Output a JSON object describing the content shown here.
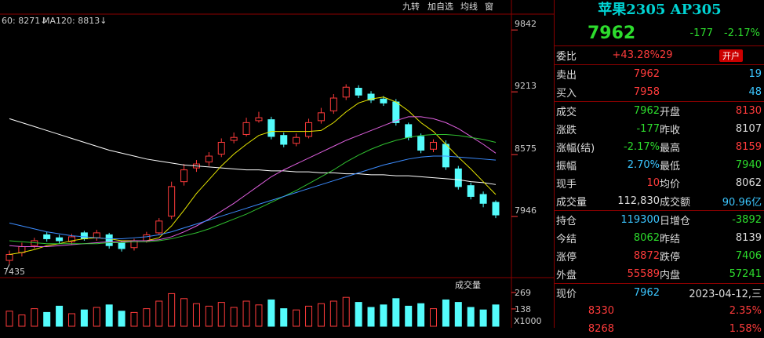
{
  "toolbar": [
    "九转",
    "加自选",
    "均线",
    "窗"
  ],
  "ma_legend": [
    "60: 8271↓",
    "MA120: 8813↓"
  ],
  "chart_data": {
    "type": "candlestick",
    "ylim": [
      7325,
      10003
    ],
    "yticks": [
      7946,
      8575,
      9213,
      9842
    ],
    "low_label": "7435",
    "open": [
      7500,
      7580,
      7650,
      7760,
      7730,
      7690,
      7780,
      7730,
      7760,
      7680,
      7630,
      7700,
      7780,
      7950,
      8300,
      8440,
      8500,
      8580,
      8720,
      8780,
      8920,
      8930,
      8770,
      8690,
      8760,
      8920,
      9020,
      9160,
      9250,
      9190,
      9140,
      9110,
      8880,
      8760,
      8630,
      8680,
      8430,
      8260,
      8170,
      8090
    ],
    "high": [
      7600,
      7680,
      7730,
      7790,
      7760,
      7770,
      7800,
      7810,
      7780,
      7700,
      7720,
      7790,
      7930,
      8300,
      8480,
      8520,
      8600,
      8740,
      8800,
      8950,
      9010,
      8960,
      8800,
      8790,
      8940,
      9050,
      9190,
      9290,
      9280,
      9220,
      9170,
      9140,
      8900,
      8790,
      8730,
      8720,
      8460,
      8290,
      8200,
      8110
    ],
    "low": [
      7460,
      7540,
      7620,
      7690,
      7670,
      7660,
      7700,
      7700,
      7620,
      7590,
      7600,
      7680,
      7760,
      7920,
      8260,
      8400,
      8460,
      8550,
      8690,
      8760,
      8900,
      8730,
      8650,
      8660,
      8740,
      8890,
      8990,
      9130,
      9150,
      9100,
      9070,
      8870,
      8720,
      8590,
      8600,
      8420,
      8220,
      8120,
      8040,
      7930
    ],
    "close": [
      7560,
      7640,
      7700,
      7720,
      7700,
      7740,
      7720,
      7780,
      7650,
      7620,
      7700,
      7760,
      7900,
      8250,
      8420,
      8480,
      8560,
      8700,
      8750,
      8900,
      8950,
      8760,
      8680,
      8750,
      8900,
      9000,
      9150,
      9260,
      9180,
      9130,
      9100,
      8900,
      8750,
      8620,
      8700,
      8450,
      8250,
      8150,
      8080,
      7962
    ],
    "up_color": "#ff3b3b",
    "down_color": "#54fcfc",
    "series": [
      {
        "color": "#ffffff",
        "values": [
          8940,
          8900,
          8860,
          8820,
          8780,
          8740,
          8700,
          8660,
          8620,
          8590,
          8560,
          8530,
          8510,
          8490,
          8470,
          8460,
          8450,
          8440,
          8430,
          8420,
          8420,
          8410,
          8410,
          8400,
          8400,
          8390,
          8390,
          8380,
          8380,
          8370,
          8370,
          8360,
          8360,
          8350,
          8340,
          8330,
          8320,
          8300,
          8290,
          8271
        ]
      },
      {
        "color": "#e6e600",
        "values": [
          7560,
          7580,
          7610,
          7650,
          7670,
          7700,
          7720,
          7730,
          7720,
          7700,
          7700,
          7700,
          7730,
          7850,
          8010,
          8180,
          8320,
          8460,
          8580,
          8680,
          8770,
          8810,
          8810,
          8810,
          8810,
          8820,
          8900,
          9010,
          9100,
          9140,
          9160,
          9110,
          9020,
          8900,
          8810,
          8680,
          8550,
          8430,
          8300,
          8170
        ]
      },
      {
        "color": "#e060e0",
        "values": [
          7650,
          7640,
          7640,
          7640,
          7650,
          7660,
          7670,
          7680,
          7690,
          7690,
          7700,
          7700,
          7710,
          7740,
          7790,
          7850,
          7920,
          8000,
          8080,
          8170,
          8260,
          8350,
          8420,
          8480,
          8540,
          8600,
          8660,
          8720,
          8770,
          8820,
          8870,
          8920,
          8960,
          8960,
          8940,
          8900,
          8840,
          8760,
          8680,
          8590
        ]
      },
      {
        "color": "#30c030",
        "values": [
          7700,
          7690,
          7680,
          7670,
          7670,
          7670,
          7670,
          7670,
          7680,
          7680,
          7690,
          7690,
          7700,
          7720,
          7750,
          7780,
          7820,
          7870,
          7920,
          7970,
          8030,
          8090,
          8150,
          8210,
          8280,
          8350,
          8420,
          8500,
          8570,
          8630,
          8680,
          8720,
          8750,
          8770,
          8780,
          8780,
          8770,
          8750,
          8730,
          8700
        ]
      },
      {
        "color": "#3c8cff",
        "values": [
          7880,
          7850,
          7820,
          7790,
          7770,
          7750,
          7740,
          7730,
          7720,
          7720,
          7730,
          7740,
          7760,
          7790,
          7830,
          7870,
          7910,
          7950,
          7990,
          8030,
          8070,
          8110,
          8150,
          8190,
          8230,
          8270,
          8310,
          8350,
          8390,
          8430,
          8470,
          8500,
          8530,
          8550,
          8560,
          8560,
          8550,
          8540,
          8530,
          8520
        ]
      }
    ]
  },
  "volume": {
    "label": "成交量",
    "ylim": [
      0,
      300
    ],
    "yticks": [
      138,
      269
    ],
    "unit": "X1000",
    "values": [
      120,
      90,
      140,
      110,
      160,
      100,
      130,
      150,
      170,
      120,
      110,
      140,
      200,
      260,
      220,
      180,
      160,
      190,
      150,
      200,
      170,
      210,
      140,
      130,
      160,
      180,
      200,
      230,
      190,
      150,
      170,
      220,
      160,
      180,
      140,
      210,
      190,
      150,
      130,
      170
    ]
  },
  "quote": {
    "title": "苹果2305 AP305",
    "price": "7962",
    "change": "-177",
    "pct": "-2.17%",
    "rows": [
      [
        "委比",
        "+43.28%",
        "29",
        "开户"
      ],
      [
        "卖出",
        "7962",
        "19"
      ],
      [
        "买入",
        "7958",
        "48"
      ],
      [
        "成交",
        "7962",
        "开盘",
        "8130"
      ],
      [
        "涨跌",
        "-177",
        "昨收",
        "8107"
      ],
      [
        "涨幅(结)",
        "-2.17%",
        "最高",
        "8159"
      ],
      [
        "振幅",
        "2.70%",
        "最低",
        "7940"
      ],
      [
        "现手",
        "10",
        "均价",
        "8062"
      ],
      [
        "成交量",
        "112,830",
        "成交额",
        "90.96亿"
      ],
      [
        "持仓",
        "119300",
        "日增仓",
        "-3892"
      ],
      [
        "今结",
        "8062",
        "昨结",
        "8139"
      ],
      [
        "涨停",
        "8872",
        "跌停",
        "7406"
      ],
      [
        "外盘",
        "55589",
        "内盘",
        "57241"
      ],
      [
        "现价",
        "7962",
        "2023-04-12,三"
      ],
      [
        "8330",
        "2.35%"
      ],
      [
        "8268",
        "1.58%"
      ]
    ]
  }
}
